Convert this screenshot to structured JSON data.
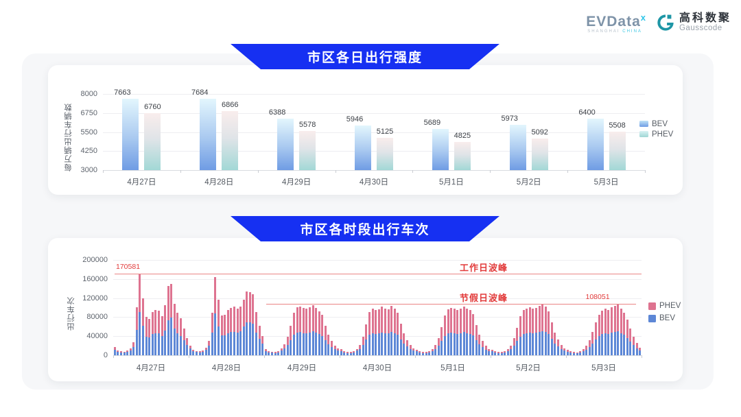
{
  "header": {
    "evdata": {
      "word": "EVData",
      "sup": "x",
      "sub1": "SHANGHAI",
      "sub2": "CHINA"
    },
    "gausscode": {
      "cn": "高科数聚",
      "en": "Gausscode"
    }
  },
  "colors": {
    "banner_blue": "#1630f2",
    "bev_blue": "#5d87d6",
    "phev_pink": "#de7390",
    "annotation_red": "#e23b3b",
    "annotation_line_red": "#ea8585",
    "bev_gradient_top": "#e3f6fd",
    "bev_gradient_bottom": "#6f9ce4",
    "phev_gradient_top": "#f9edec",
    "phev_gradient_bottom": "#a2d8d6"
  },
  "chart_data": [
    {
      "type": "bar",
      "title": "市区各日出行强度",
      "ylabel": "每万辆出行车辆数",
      "ylim": [
        3000,
        8000
      ],
      "yticks": [
        8000,
        6750,
        5500,
        4250,
        3000
      ],
      "grid": true,
      "legend_position": "right",
      "legend": [
        "BEV",
        "PHEV"
      ],
      "categories": [
        "4月27日",
        "4月28日",
        "4月29日",
        "4月30日",
        "5月1日",
        "5月2日",
        "5月3日"
      ],
      "series": [
        {
          "name": "BEV",
          "values": [
            7663,
            7684,
            6388,
            5946,
            5689,
            5973,
            6400
          ]
        },
        {
          "name": "PHEV",
          "values": [
            6760,
            6866,
            5578,
            5125,
            4825,
            5092,
            5508
          ]
        }
      ]
    },
    {
      "type": "stacked-bar",
      "title": "市区各时段出行车次",
      "ylabel": "出行车次",
      "ylim": [
        0,
        200000
      ],
      "yticks": [
        200000,
        160000,
        120000,
        80000,
        40000,
        0
      ],
      "grid": true,
      "legend_position": "right",
      "legend": [
        "PHEV",
        "BEV"
      ],
      "categories": [
        "4月27日",
        "4月28日",
        "4月29日",
        "4月30日",
        "5月1日",
        "5月2日",
        "5月3日"
      ],
      "hours_per_day": 24,
      "annotations": [
        {
          "label": "工作日波峰",
          "value": 170581,
          "value_label": "170581",
          "start_category_index": 0,
          "value_label_anchor": "start"
        },
        {
          "label": "节假日波峰",
          "value": 108051,
          "value_label": "108051",
          "start_category_index": 2,
          "value_label_anchor": "end"
        }
      ],
      "series": [
        {
          "name": "BEV",
          "values": [
            [
              12000,
              7500,
              6000,
              5400,
              6800,
              10000,
              17500,
              53500,
              90500,
              62000,
              39500,
              37500,
              44000,
              46500,
              45500,
              40000,
              51500,
              74000,
              79000,
              56000,
              45500,
              40500,
              31000,
              22000
            ],
            [
              14000,
              8500,
              6500,
              5700,
              7500,
              11000,
              19500,
              47500,
              88000,
              61000,
              41000,
              41500,
              46500,
              48500,
              49500,
              48000,
              50000,
              60000,
              69500,
              68500,
              66500,
              47500,
              35000,
              24500
            ],
            [
              9000,
              6300,
              5300,
              4900,
              6300,
              9800,
              14000,
              21000,
              32000,
              42500,
              47500,
              48500,
              46500,
              46000,
              47500,
              50000,
              47000,
              44000,
              40500,
              31000,
              22500,
              17000,
              12500,
              9500
            ],
            [
              8700,
              6200,
              5000,
              4800,
              6200,
              9500,
              13500,
              21500,
              33000,
              43500,
              46000,
              45000,
              45500,
              48000,
              46500,
              45500,
              49000,
              46500,
              43000,
              33500,
              24000,
              18000,
              13000,
              9400
            ],
            [
              8400,
              6000,
              4900,
              4600,
              6000,
              9100,
              13000,
              20000,
              30000,
              40000,
              45500,
              47000,
              46000,
              44500,
              46500,
              48500,
              46000,
              45000,
              41500,
              32000,
              23000,
              17000,
              12000,
              9000
            ],
            [
              8000,
              5700,
              4800,
              4600,
              5900,
              9000,
              12700,
              19500,
              29500,
              39500,
              44500,
              46500,
              47500,
              46000,
              47000,
              49000,
              50500,
              48500,
              44500,
              35000,
              25000,
              18500,
              13000,
              9400
            ],
            [
              7700,
              5600,
              4800,
              4500,
              5700,
              8800,
              12000,
              17500,
              25000,
              33500,
              40500,
              44000,
              46000,
              45000,
              47500,
              48500,
              51000,
              46500,
              42500,
              36500,
              28500,
              21000,
              15000,
              10500
            ]
          ]
        },
        {
          "name": "PHEV",
          "values": [
            [
              5000,
              3000,
              2500,
              2100,
              2700,
              4000,
              9500,
              47000,
              80081,
              57000,
              41000,
              39000,
              46500,
              49000,
              48000,
              41500,
              54000,
              71500,
              70000,
              52500,
              43000,
              37000,
              24500,
              13500
            ],
            [
              6000,
              3500,
              2500,
              2300,
              3000,
              4500,
              10500,
              41000,
              76000,
              56000,
              42500,
              43000,
              49000,
              51000,
              52000,
              50500,
              52500,
              56500,
              64500,
              64000,
              61500,
              43000,
              27000,
              15500
            ],
            [
              4000,
              2700,
              2200,
              2100,
              2700,
              4200,
              8500,
              17500,
              30500,
              46000,
              53000,
              54000,
              52500,
              51500,
              53000,
              55500,
              52500,
              48000,
              44000,
              30500,
              20000,
              13000,
              8000,
              5000
            ],
            [
              3800,
              2600,
              2200,
              2000,
              2600,
              4000,
              8500,
              18000,
              31500,
              47000,
              51500,
              50500,
              51500,
              53500,
              52000,
              51000,
              54500,
              51000,
              46500,
              33000,
              21500,
              13500,
              8000,
              4600
            ],
            [
              3600,
              2500,
              2100,
              2000,
              2500,
              3900,
              8000,
              16500,
              28500,
              43500,
              51000,
              52500,
              51500,
              50500,
              52000,
              54000,
              52000,
              49500,
              44500,
              31500,
              20500,
              13000,
              8000,
              4500
            ],
            [
              3500,
              2500,
              2100,
              1900,
              2500,
              3800,
              7800,
              16000,
              28000,
              43000,
              50000,
              52000,
              53000,
              51500,
              52500,
              54500,
              56000,
              53000,
              48000,
              34500,
              22500,
              14000,
              8500,
              4600
            ],
            [
              3300,
              2400,
              2000,
              1900,
              2500,
              3700,
              7500,
              14000,
              23500,
              35000,
              45000,
              49500,
              51500,
              50500,
              53000,
              55000,
              57051,
              52000,
              46500,
              38000,
              27000,
              17500,
              10500,
              5500
            ]
          ]
        }
      ]
    }
  ]
}
